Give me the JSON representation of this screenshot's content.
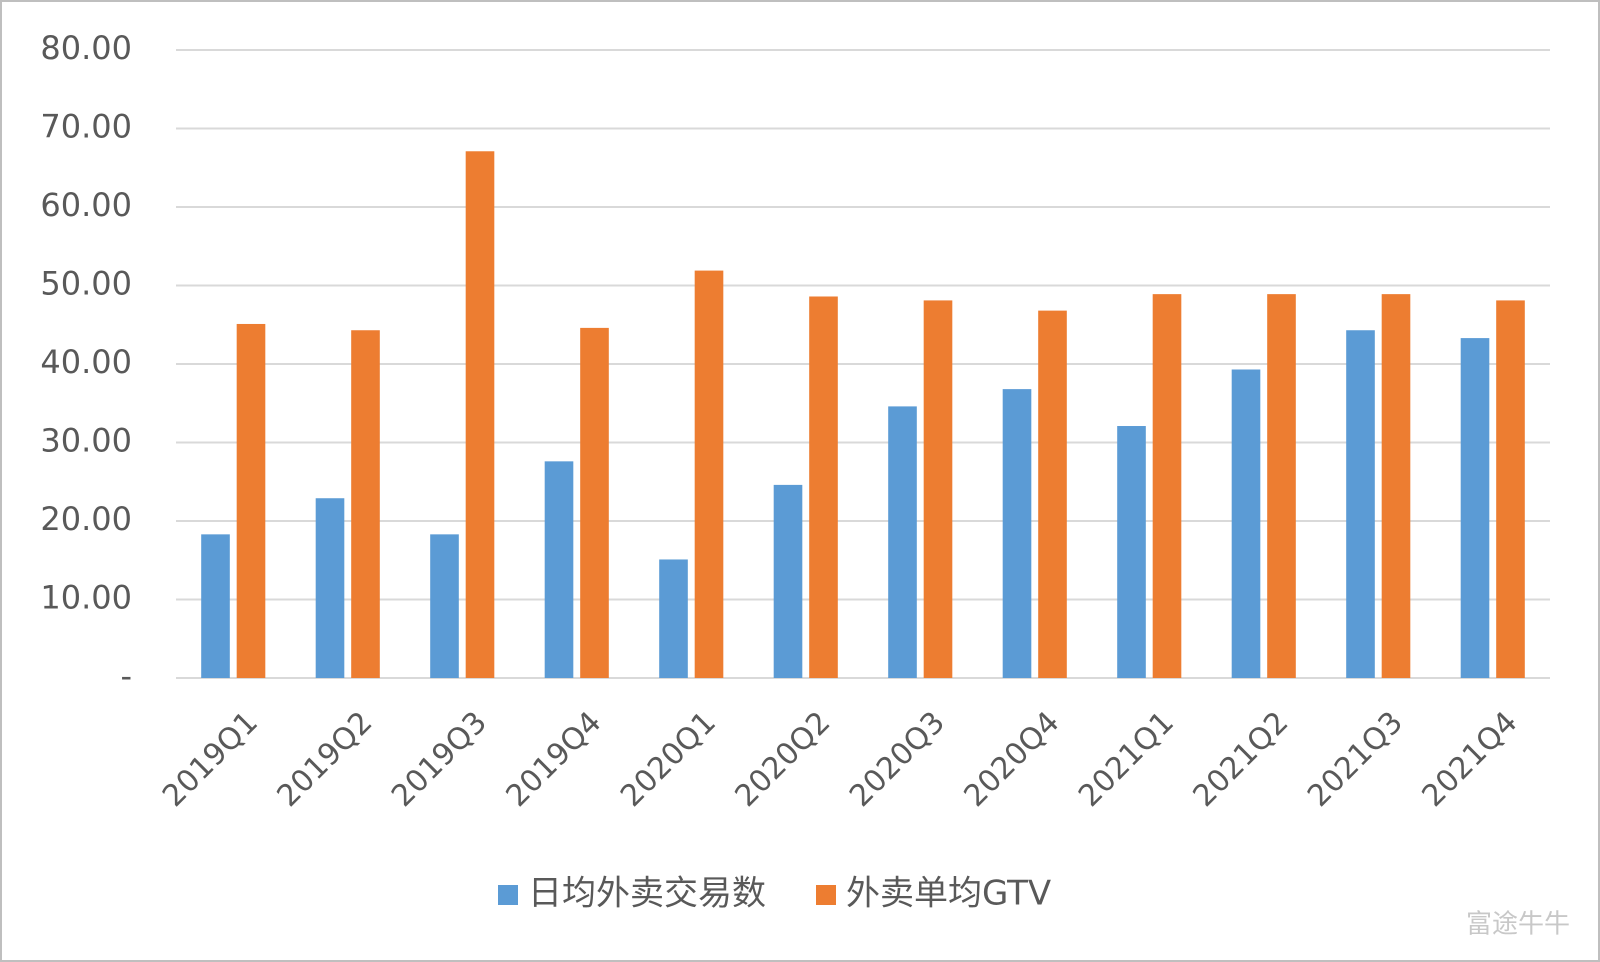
{
  "chart_data": {
    "type": "bar",
    "categories": [
      "2019Q1",
      "2019Q2",
      "2019Q3",
      "2019Q4",
      "2020Q1",
      "2020Q2",
      "2020Q3",
      "2020Q4",
      "2021Q1",
      "2021Q2",
      "2021Q3",
      "2021Q4"
    ],
    "series": [
      {
        "name": "日均外卖交易数",
        "color": "#5b9bd5",
        "values": [
          18.3,
          22.9,
          18.3,
          27.6,
          15.1,
          24.6,
          34.6,
          36.8,
          32.1,
          39.3,
          44.3,
          43.3
        ]
      },
      {
        "name": "外卖单均GTV",
        "color": "#ed7d31",
        "values": [
          45.1,
          44.3,
          67.1,
          44.6,
          51.9,
          48.6,
          48.1,
          46.8,
          48.9,
          48.9,
          48.9,
          48.1
        ]
      }
    ],
    "ylim": [
      0,
      80
    ],
    "yticks": [
      {
        "value": 0,
        "label": "-"
      },
      {
        "value": 10,
        "label": "10.00"
      },
      {
        "value": 20,
        "label": "20.00"
      },
      {
        "value": 30,
        "label": "30.00"
      },
      {
        "value": 40,
        "label": "40.00"
      },
      {
        "value": 50,
        "label": "50.00"
      },
      {
        "value": 60,
        "label": "60.00"
      },
      {
        "value": 70,
        "label": "70.00"
      },
      {
        "value": 80,
        "label": "80.00"
      }
    ],
    "grid": true,
    "legend": "bottom",
    "watermark": "富途牛牛"
  }
}
